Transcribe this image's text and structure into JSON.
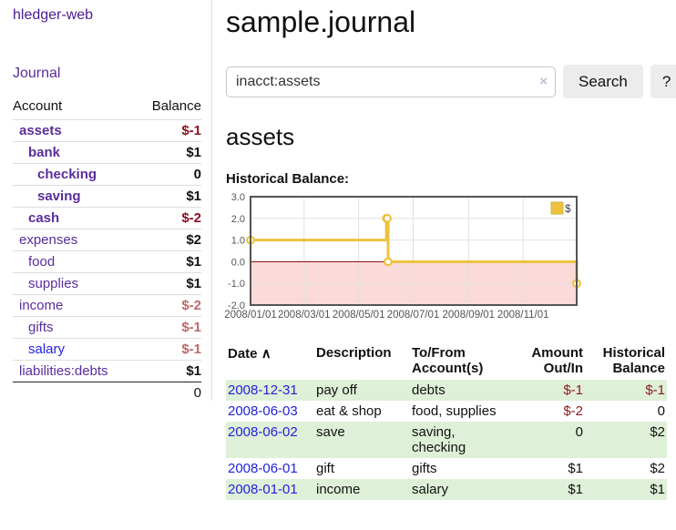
{
  "sidebar": {
    "brand": "hledger-web",
    "nav": {
      "journal": "Journal"
    },
    "accounts": {
      "headers": {
        "account": "Account",
        "balance": "Balance"
      },
      "rows": [
        {
          "name": "assets",
          "depth": 1,
          "balance": "$-1",
          "bold": true,
          "neg": "strong"
        },
        {
          "name": "bank",
          "depth": 2,
          "balance": "$1",
          "bold": true
        },
        {
          "name": "checking",
          "depth": 3,
          "balance": "0",
          "bold": true
        },
        {
          "name": "saving",
          "depth": 3,
          "balance": "$1",
          "bold": true
        },
        {
          "name": "cash",
          "depth": 2,
          "balance": "$-2",
          "bold": true,
          "neg": "strong"
        },
        {
          "name": "expenses",
          "depth": 1,
          "balance": "$2"
        },
        {
          "name": "food",
          "depth": 2,
          "balance": "$1"
        },
        {
          "name": "supplies",
          "depth": 2,
          "balance": "$1"
        },
        {
          "name": "income",
          "depth": 1,
          "balance": "$-2",
          "neg": "light"
        },
        {
          "name": "gifts",
          "depth": 2,
          "balance": "$-1",
          "neg": "light"
        },
        {
          "name": "salary",
          "depth": 2,
          "balance": "$-1",
          "neg": "light",
          "link": "blue"
        },
        {
          "name": "liabilities:debts",
          "depth": 1,
          "balance": "$1"
        }
      ],
      "total": "0"
    }
  },
  "main": {
    "title": "sample.journal",
    "search": {
      "value": "inacct:assets",
      "clear_icon": "×",
      "search_button": "Search",
      "help_button": "?"
    },
    "heading": "assets",
    "chart_title": "Historical Balance:"
  },
  "chart_data": {
    "type": "line",
    "step": true,
    "title": "Historical Balance:",
    "legend_label": "$",
    "legend_position": "top-right",
    "points": [
      {
        "date": "2008-01-01",
        "value": 1
      },
      {
        "date": "2008-06-01",
        "value": 2
      },
      {
        "date": "2008-06-02",
        "value": 2
      },
      {
        "date": "2008-06-03",
        "value": 0
      },
      {
        "date": "2008-12-31",
        "value": -1
      }
    ],
    "x_range": [
      "2008-01-01",
      "2008-12-31"
    ],
    "ylim": [
      -2,
      3
    ],
    "y_ticks": [
      "3.0",
      "2.0",
      "1.0",
      "0.0",
      "-1.0",
      "-2.0"
    ],
    "x_ticks": [
      "2008/01/01",
      "2008/03/01",
      "2008/05/01",
      "2008/07/01",
      "2008/09/01",
      "2008/11/01"
    ],
    "grid": true,
    "colors": {
      "line": "#edc240",
      "negative_fill": "#fbdada",
      "zero_line": "#8b0000",
      "border": "#545454",
      "grid": "#e0e0e0",
      "tick_text": "#545454"
    }
  },
  "register": {
    "headers": {
      "date": "Date",
      "sort_icon": "∧",
      "description": "Description",
      "accounts": "To/From Account(s)",
      "amount": "Amount Out/In",
      "balance": "Historical Balance"
    },
    "rows": [
      {
        "date": "2008-12-31",
        "description": "pay off",
        "accounts": "debts",
        "amount": "$-1",
        "balance": "$-1",
        "amount_neg": true,
        "balance_neg": true
      },
      {
        "date": "2008-06-03",
        "description": "eat & shop",
        "accounts": "food, supplies",
        "amount": "$-2",
        "balance": "0",
        "amount_neg": true
      },
      {
        "date": "2008-06-02",
        "description": "save",
        "accounts": "saving, checking",
        "amount": "0",
        "balance": "$2"
      },
      {
        "date": "2008-06-01",
        "description": "gift",
        "accounts": "gifts",
        "amount": "$1",
        "balance": "$2"
      },
      {
        "date": "2008-01-01",
        "description": "income",
        "accounts": "salary",
        "amount": "$1",
        "balance": "$1"
      }
    ]
  },
  "colors": {
    "link_purple": "#5a2d9c",
    "link_blue": "#2222dd",
    "negative_strong": "#8c1322",
    "negative_light": "#c06868",
    "register_negative": "#8b1a1a",
    "row_stripe_green": "#dff0d8"
  }
}
